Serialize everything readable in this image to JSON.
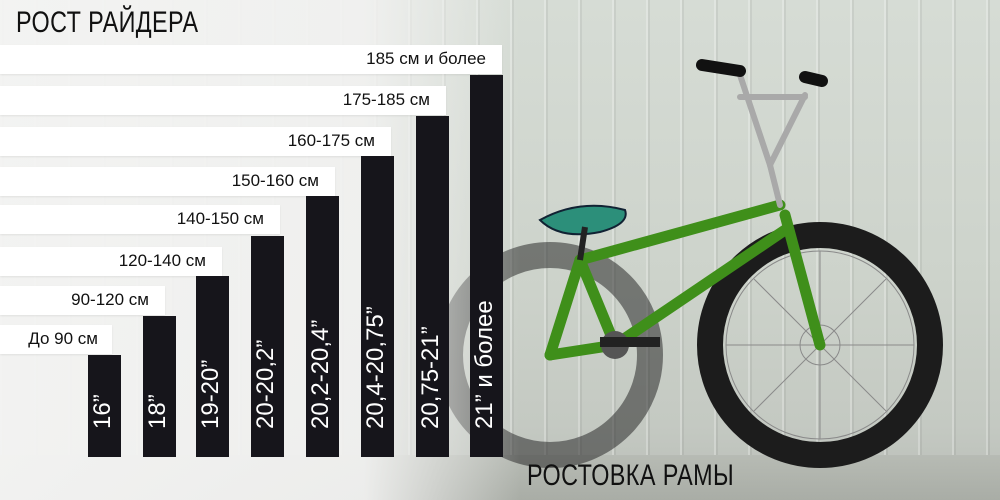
{
  "title": "РОСТ РАЙДЕРА",
  "subtitle": "РОСТОВКА РАМЫ",
  "heights": [
    "До 90 см",
    "90-120 см",
    "120-140 см",
    "140-150 см",
    "150-160 см",
    "160-175 см",
    "175-185 см",
    "185 см и более"
  ],
  "frame_sizes": [
    "16”",
    "18”",
    "19-20”",
    "20-20,2”",
    "20,2-20,4”",
    "20,4-20,75”",
    "20,75-21”",
    "21” и более"
  ],
  "colors": {
    "bar_dark": "#16151b",
    "bar_light": "#ffffff",
    "frame_green": "#3f8f1a"
  }
}
